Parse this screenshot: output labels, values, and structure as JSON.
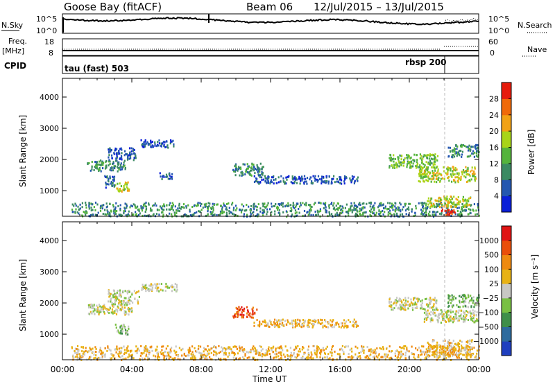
{
  "header": {
    "station": "Goose Bay (fitACF)",
    "beam": "Beam 06",
    "date_range": "12/Jul/2015 – 13/Jul/2015"
  },
  "noise_panel": {
    "left_label": "N.Sky",
    "right_label": "N.Search",
    "tick_top": "10^5",
    "tick_bottom": "10^0",
    "right_tick_top": "10^5",
    "right_tick_bottom": "10^0"
  },
  "freq_panel": {
    "left_label_line1": "Freq.",
    "left_label_line2": "[MHz]",
    "right_label": "Nave",
    "left_tick_top": "18",
    "left_tick_bottom": "8",
    "right_tick_top": "60",
    "right_tick_bottom": "0"
  },
  "cpid_panel": {
    "label": "CPID",
    "mode1": "tau (fast) 503",
    "mode2": "rbsp 200"
  },
  "colors": {
    "power_scale": [
      "#0b1fd8",
      "#2457b0",
      "#3b8a62",
      "#55b43c",
      "#a8d418",
      "#f2a215",
      "#f06a0a",
      "#e61b0c"
    ],
    "velocity_scale": [
      "#1f3fbf",
      "#2e6b9e",
      "#3f8f4a",
      "#79c043",
      "#c8c8c4",
      "#e8b214",
      "#ef8a10",
      "#ea4e0a",
      "#e01414"
    ]
  },
  "chart_data": [
    {
      "type": "heatmap",
      "name": "power",
      "ylabel": "Slant Range [km]",
      "xlabel": "",
      "x_ticks": [
        "00:00",
        "04:00",
        "08:00",
        "12:00",
        "16:00",
        "20:00",
        "00:00"
      ],
      "x_range_hours": [
        0,
        24
      ],
      "y_ticks": [
        1000,
        2000,
        3000,
        4000
      ],
      "ylim": [
        180,
        4600
      ],
      "colorbar": {
        "label": "Power [dB]",
        "ticks": [
          4,
          8,
          12,
          16,
          20,
          24,
          28
        ],
        "range": [
          0,
          32
        ]
      },
      "echo_regions": [
        {
          "t": [
            1.4,
            3.6
          ],
          "r": [
            1650,
            2000
          ],
          "level": 2
        },
        {
          "t": [
            2.6,
            4.2
          ],
          "r": [
            2000,
            2400
          ],
          "level": 1
        },
        {
          "t": [
            3.0,
            3.8
          ],
          "r": [
            1000,
            1300
          ],
          "level": 4
        },
        {
          "t": [
            2.4,
            3.0
          ],
          "r": [
            1100,
            1500
          ],
          "level": 1
        },
        {
          "t": [
            4.5,
            6.5
          ],
          "r": [
            2400,
            2650
          ],
          "level": 1
        },
        {
          "t": [
            5.5,
            6.3
          ],
          "r": [
            1400,
            1600
          ],
          "level": 1
        },
        {
          "t": [
            9.8,
            11.6
          ],
          "r": [
            1500,
            1900
          ],
          "level": 2
        },
        {
          "t": [
            11.0,
            17.0
          ],
          "r": [
            1250,
            1500
          ],
          "level": 1
        },
        {
          "t": [
            0.5,
            24.0
          ],
          "r": [
            200,
            650
          ],
          "level": 2
        },
        {
          "t": [
            18.8,
            21.6
          ],
          "r": [
            1750,
            2200
          ],
          "level": 3
        },
        {
          "t": [
            20.5,
            23.8
          ],
          "r": [
            1300,
            1800
          ],
          "level": 4
        },
        {
          "t": [
            21.8,
            22.6
          ],
          "r": [
            250,
            450
          ],
          "level": 7
        },
        {
          "t": [
            21.0,
            23.5
          ],
          "r": [
            500,
            850
          ],
          "level": 4
        },
        {
          "t": [
            22.2,
            24.0
          ],
          "r": [
            2100,
            2500
          ],
          "level": 2
        }
      ]
    },
    {
      "type": "heatmap",
      "name": "velocity",
      "ylabel": "Slant Range [km]",
      "xlabel": "Time UT",
      "x_ticks": [
        "00:00",
        "04:00",
        "08:00",
        "12:00",
        "16:00",
        "20:00",
        "00:00"
      ],
      "x_range_hours": [
        0,
        24
      ],
      "y_ticks": [
        1000,
        2000,
        3000,
        4000
      ],
      "ylim": [
        180,
        4600
      ],
      "colorbar": {
        "label": "Velocity [m s⁻¹]",
        "tick_labels": [
          "1000",
          "500",
          "100",
          "25",
          "−25",
          "−100",
          "−500",
          "−1000"
        ]
      },
      "echo_regions": [
        {
          "t": [
            1.4,
            4.0
          ],
          "r": [
            1650,
            2000
          ],
          "level": 4
        },
        {
          "t": [
            2.6,
            4.4
          ],
          "r": [
            2000,
            2450
          ],
          "level": 4
        },
        {
          "t": [
            3.0,
            3.8
          ],
          "r": [
            1000,
            1350
          ],
          "level": 3
        },
        {
          "t": [
            4.5,
            6.6
          ],
          "r": [
            2400,
            2650
          ],
          "level": 4
        },
        {
          "t": [
            9.8,
            11.2
          ],
          "r": [
            1550,
            1900
          ],
          "level": 7
        },
        {
          "t": [
            11.0,
            17.0
          ],
          "r": [
            1250,
            1500
          ],
          "level": 5
        },
        {
          "t": [
            0.5,
            24.0
          ],
          "r": [
            200,
            650
          ],
          "level": 5
        },
        {
          "t": [
            18.8,
            21.6
          ],
          "r": [
            1800,
            2200
          ],
          "level": 4
        },
        {
          "t": [
            20.8,
            24.0
          ],
          "r": [
            1400,
            1800
          ],
          "level": 4
        },
        {
          "t": [
            21.0,
            23.6
          ],
          "r": [
            300,
            850
          ],
          "level": 5
        },
        {
          "t": [
            22.2,
            24.0
          ],
          "r": [
            1900,
            2300
          ],
          "level": 3
        }
      ]
    }
  ]
}
